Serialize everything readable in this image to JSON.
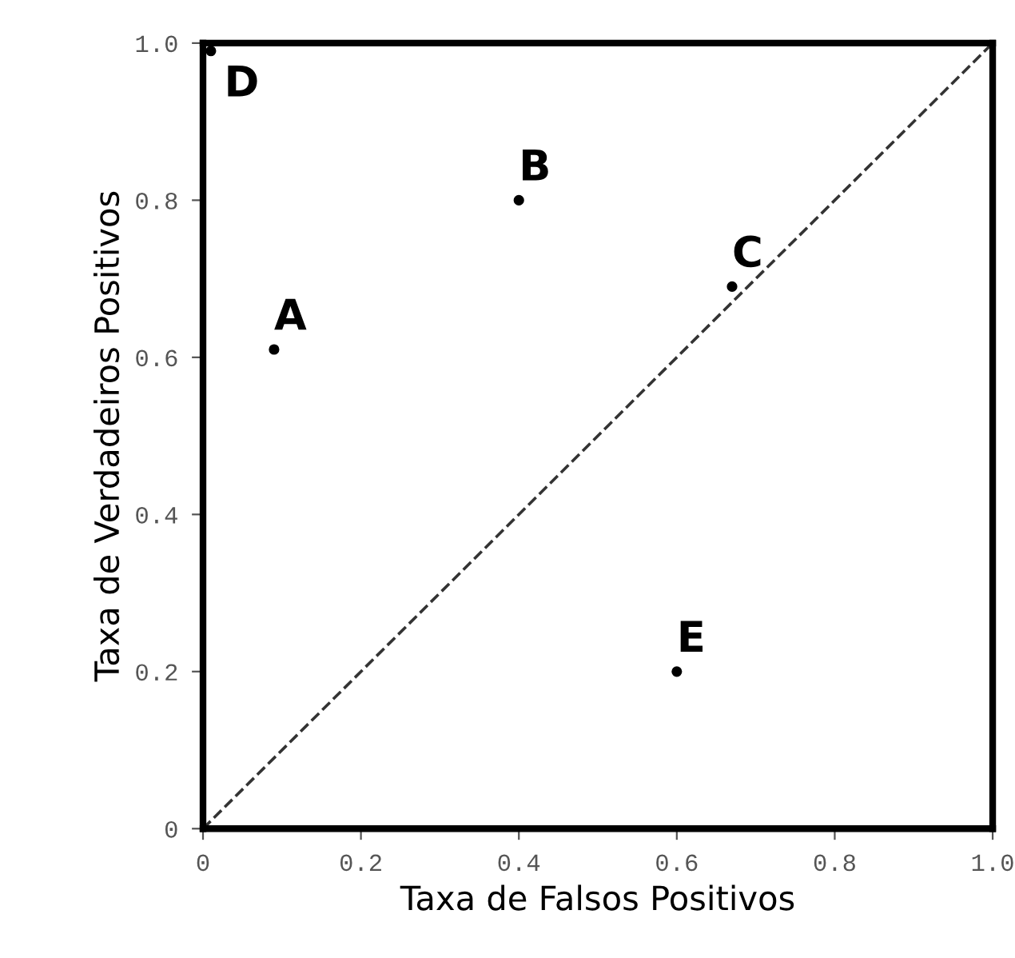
{
  "chart_data": {
    "type": "scatter",
    "xlabel": "Taxa de Falsos Positivos",
    "ylabel": "Taxa de Verdadeiros Positivos",
    "xlim": [
      0,
      1
    ],
    "ylim": [
      0,
      1
    ],
    "xticks": [
      0,
      0.2,
      0.4,
      0.6,
      0.8,
      {
        "value": 1,
        "label": "1.0"
      }
    ],
    "yticks": [
      0,
      0.2,
      0.4,
      0.6,
      0.8,
      {
        "value": 1,
        "label": "1.0"
      }
    ],
    "grid": false,
    "marker": "circle",
    "series": [
      {
        "color": "#000000",
        "x": [
          0.01,
          0.09,
          0.4,
          0.67,
          0.6
        ],
        "values": [
          0.99,
          0.61,
          0.8,
          0.69,
          0.2
        ]
      },
      {
        "type": "line",
        "color": "#333333",
        "line_style": "dashed",
        "marker": "none",
        "x": [
          0,
          1
        ],
        "values": [
          0,
          1
        ]
      }
    ],
    "annotations": [
      {
        "text": "D",
        "x": 0.01,
        "y": 0.99
      },
      {
        "text": "A",
        "x": 0.09,
        "y": 0.61
      },
      {
        "text": "B",
        "x": 0.4,
        "y": 0.8
      },
      {
        "text": "C",
        "x": 0.67,
        "y": 0.69
      },
      {
        "text": "E",
        "x": 0.6,
        "y": 0.2
      }
    ]
  }
}
